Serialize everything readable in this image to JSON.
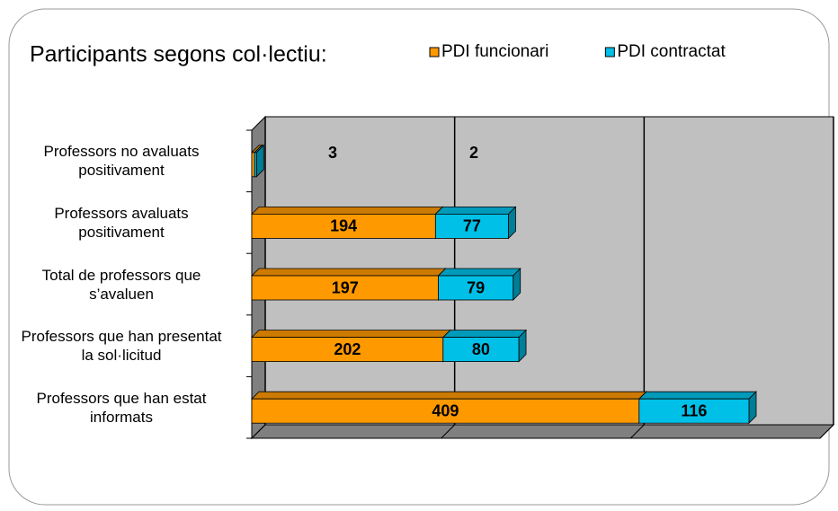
{
  "chart_data": {
    "type": "bar3d_stacked_horizontal",
    "title": "Participants segons col·lectiu:",
    "categories": [
      "Professors no avaluats positivament",
      "Professors avaluats positivament",
      "Total de professors que s’avaluen",
      "Professors que han presentat la sol·licitud",
      "Professors que han estat informats"
    ],
    "series": [
      {
        "name": "PDI funcionari",
        "color": "#ff9900",
        "values": [
          3,
          194,
          197,
          202,
          409
        ]
      },
      {
        "name": "PDI contractat",
        "color": "#00c0e8",
        "values": [
          2,
          77,
          79,
          80,
          116
        ]
      }
    ],
    "xlim": [
      0,
      600
    ],
    "xticks": [
      0,
      200,
      400,
      600
    ],
    "grid": true
  }
}
